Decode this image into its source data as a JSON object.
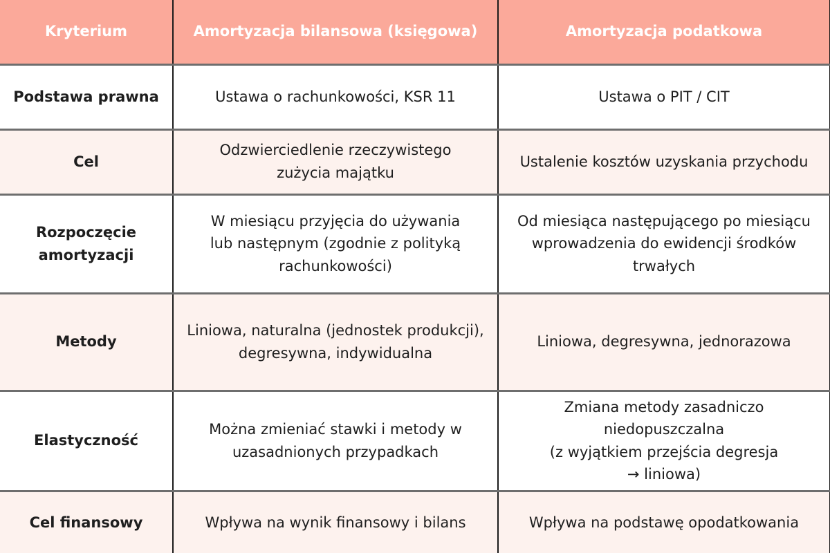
{
  "colors": {
    "header-bg": "#FBA99A",
    "header-text": "#FFFFFF",
    "row-bg": "#FFFFFF",
    "row-alt-bg": "#FDF2EE",
    "body-text": "#1E1E1E",
    "v-border": "#1B1B1B",
    "h-border": "#6E6E6E"
  },
  "table": {
    "columns": [
      "Kryterium",
      "Amortyzacja bilansowa (księgowa)",
      "Amortyzacja podatkowa"
    ],
    "rows": [
      [
        "Podstawa prawna",
        "Ustawa o rachunkowości, KSR 11",
        "Ustawa o PIT / CIT"
      ],
      [
        "Cel",
        "Odzwierciedlenie rzeczywistego\nzużycia majątku",
        "Ustalenie kosztów uzyskania przychodu"
      ],
      [
        "Rozpoczęcie\namortyzacji",
        "W miesiącu przyjęcia do używania\nlub następnym (zgodnie z polityką\nrachunkowości)",
        "Od miesiąca następującego po miesiącu\nwprowadzenia do ewidencji środków\ntrwałych"
      ],
      [
        "Metody",
        "Liniowa, naturalna (jednostek produkcji),\ndegresywna, indywidualna",
        "Liniowa, degresywna, jednorazowa"
      ],
      [
        "Elastyczność",
        "Można zmieniać stawki i metody w\nuzasadnionych przypadkach",
        "Zmiana metody zasadniczo\nniedopuszczalna\n(z wyjątkiem przejścia degresja\n→ liniowa)"
      ],
      [
        "Cel finansowy",
        "Wpływa na wynik finansowy i bilans",
        "Wpływa na podstawę opodatkowania"
      ]
    ]
  }
}
